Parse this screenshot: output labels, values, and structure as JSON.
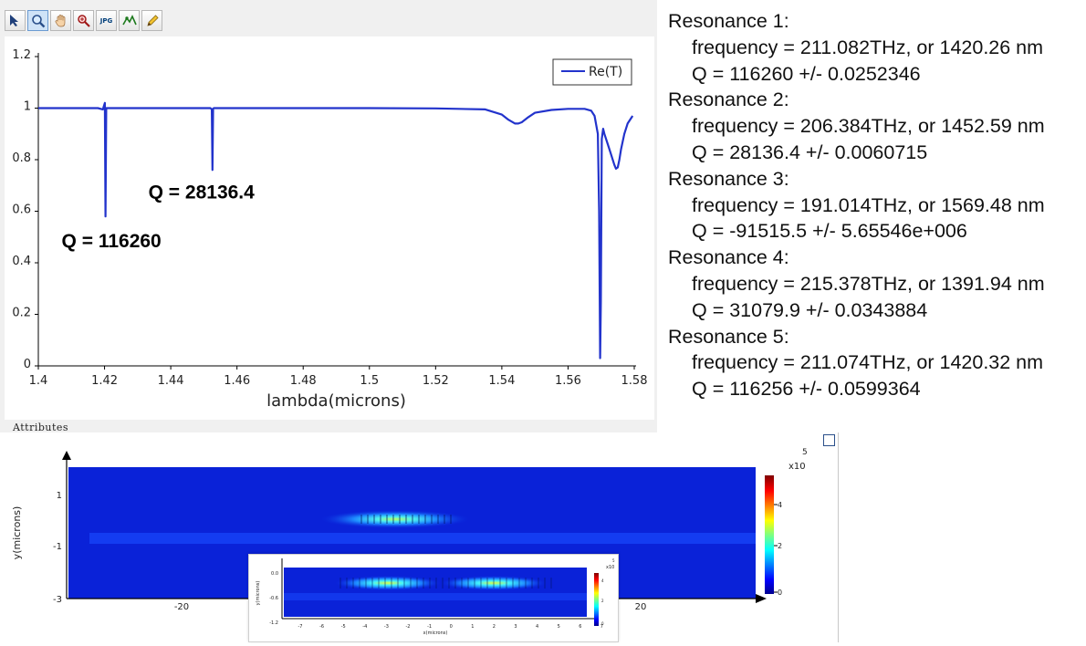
{
  "toolbar": {
    "tools": [
      {
        "name": "pointer-icon",
        "label": ""
      },
      {
        "name": "zoom-icon",
        "label": ""
      },
      {
        "name": "pan-hand-icon",
        "label": ""
      },
      {
        "name": "zoom-region-icon",
        "label": ""
      },
      {
        "name": "jpg-export-icon",
        "label": "JPG"
      },
      {
        "name": "marker-icon",
        "label": ""
      },
      {
        "name": "pencil-icon",
        "label": ""
      }
    ]
  },
  "colors": {
    "series": "#2233cc",
    "annotation": "#000000"
  },
  "chart_data": {
    "type": "line",
    "xlabel": "lambda(microns)",
    "ylabel": "",
    "xlim": [
      1.4,
      1.58
    ],
    "ylim": [
      0,
      1.2
    ],
    "x_ticks": [
      "1.4",
      "1.42",
      "1.44",
      "1.46",
      "1.48",
      "1.5",
      "1.52",
      "1.54",
      "1.56",
      "1.58"
    ],
    "y_ticks": [
      "0",
      "0.2",
      "0.4",
      "0.6",
      "0.8",
      "1",
      "1.2"
    ],
    "legend_position": "top-right",
    "grid": false,
    "series": [
      {
        "name": "Re(T)",
        "x": [
          1.4,
          1.418,
          1.4195,
          1.4201,
          1.4203,
          1.4205,
          1.421,
          1.44,
          1.452,
          1.4524,
          1.4526,
          1.4528,
          1.453,
          1.47,
          1.5,
          1.52,
          1.535,
          1.54,
          1.542,
          1.544,
          1.545,
          1.546,
          1.548,
          1.55,
          1.555,
          1.56,
          1.565,
          1.567,
          1.568,
          1.569,
          1.5694,
          1.5697,
          1.5699,
          1.5702,
          1.5706,
          1.571,
          1.572,
          1.573,
          1.574,
          1.5745,
          1.575,
          1.5755,
          1.576,
          1.577,
          1.578,
          1.5795
        ],
        "y": [
          1.0,
          1.0,
          0.995,
          1.02,
          0.58,
          1.0,
          1.0,
          1.0,
          1.0,
          0.995,
          0.76,
          0.998,
          1.0,
          1.0,
          1.0,
          0.999,
          0.995,
          0.975,
          0.955,
          0.94,
          0.94,
          0.945,
          0.965,
          0.982,
          0.993,
          0.997,
          0.997,
          0.99,
          0.97,
          0.9,
          0.6,
          0.03,
          0.25,
          0.88,
          0.92,
          0.9,
          0.86,
          0.82,
          0.78,
          0.765,
          0.77,
          0.8,
          0.84,
          0.9,
          0.94,
          0.97
        ]
      }
    ],
    "annotations": [
      {
        "text": "Q = 116260",
        "x": 1.42,
        "y": 0.46
      },
      {
        "text": "Q = 28136.4",
        "x": 1.452,
        "y": 0.65
      }
    ]
  },
  "resonances": [
    {
      "title": "Resonance 1:",
      "freq": "frequency = 211.082THz, or 1420.26 nm",
      "q": "Q = 116260 +/- 0.0252346"
    },
    {
      "title": "Resonance 2:",
      "freq": "frequency = 206.384THz, or 1452.59 nm",
      "q": "Q = 28136.4 +/- 0.0060715"
    },
    {
      "title": "Resonance 3:",
      "freq": "frequency = 191.014THz, or 1569.48 nm",
      "q": "Q = -91515.5 +/- 5.65546e+006"
    },
    {
      "title": "Resonance 4:",
      "freq": "frequency = 215.378THz, or 1391.94 nm",
      "q": "Q = 31079.9 +/- 0.0343884"
    },
    {
      "title": "Resonance 5:",
      "freq": "frequency = 211.074THz, or 1420.32 nm",
      "q": "Q = 116256 +/- 0.0599364"
    }
  ],
  "attributes_label": "Attributes",
  "field_plot": {
    "ylabel": "y(microns)",
    "y_ticks": [
      "1",
      "-1",
      "-3"
    ],
    "x_ticks": [
      "-20",
      "20"
    ],
    "colorbar_exponent": "x10",
    "colorbar_power": "5",
    "colorbar_ticks": [
      "4",
      "2",
      "0"
    ],
    "inset": {
      "ylabel": "y(microns)",
      "xlabel": "x(microns)",
      "y_ticks": [
        "0.0",
        "-0.6",
        "-1.2"
      ],
      "x_ticks": [
        "-7",
        "-6",
        "-5",
        "-4",
        "-3",
        "-2",
        "-1",
        "0",
        "1",
        "2",
        "3",
        "4",
        "5",
        "6",
        "7"
      ],
      "colorbar_exponent": "x10",
      "colorbar_power": "5",
      "colorbar_ticks": [
        "4",
        "2",
        "0"
      ]
    }
  }
}
